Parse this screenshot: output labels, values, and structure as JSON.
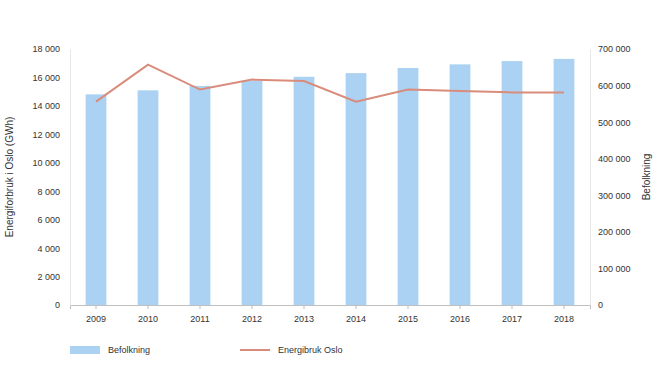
{
  "chart_data": {
    "type": "bar",
    "categories": [
      "2009",
      "2010",
      "2011",
      "2012",
      "2013",
      "2014",
      "2015",
      "2016",
      "2017",
      "2018"
    ],
    "y_label": "Energiforbruk i Oslo (GWh)",
    "y2_label": "Befolkning",
    "ylim": [
      0,
      18000
    ],
    "yticks": [
      0,
      {
        "value": 2000,
        "label": "2 000"
      },
      {
        "value": 4000,
        "label": "4 000"
      },
      {
        "value": 6000,
        "label": "6 000"
      },
      {
        "value": 8000,
        "label": "8 000"
      },
      {
        "value": 10000,
        "label": "10 000"
      },
      {
        "value": 12000,
        "label": "12 000"
      },
      {
        "value": 14000,
        "label": "14 000"
      },
      {
        "value": 16000,
        "label": "16 000"
      },
      {
        "value": 18000,
        "label": "18 000"
      }
    ],
    "y2lim": [
      0,
      700000
    ],
    "y2ticks": [
      0,
      {
        "value": 100000,
        "label": "100 000"
      },
      {
        "value": 200000,
        "label": "200 000"
      },
      {
        "value": 300000,
        "label": "300 000"
      },
      {
        "value": 400000,
        "label": "400 000"
      },
      {
        "value": 500000,
        "label": "500 000"
      },
      {
        "value": 600000,
        "label": "600 000"
      },
      {
        "value": 700000,
        "label": "700 000"
      }
    ],
    "grid": false,
    "legend": "bottom",
    "series": [
      {
        "name": "Befolkning",
        "type": "bar",
        "axis": "y2",
        "color": "#abd2f2",
        "values": [
          576000,
          587000,
          599000,
          613000,
          624000,
          634000,
          648000,
          658000,
          667000,
          673000
        ]
      },
      {
        "name": "Energibruk Oslo",
        "type": "line",
        "color": "#d98c7b",
        "values": [
          14300,
          16900,
          15150,
          15850,
          15750,
          14300,
          15150,
          15050,
          14950,
          14950
        ]
      }
    ]
  }
}
